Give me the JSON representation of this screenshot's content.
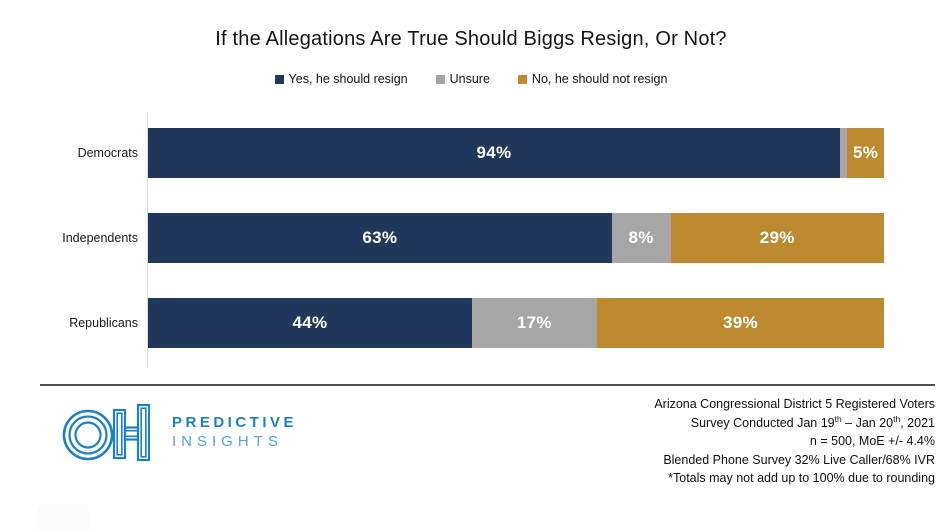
{
  "title": "If the Allegations Are True Should Biggs Resign, Or Not?",
  "legend": [
    {
      "label": "Yes, he should resign",
      "color": "#21375B"
    },
    {
      "label": "Unsure",
      "color": "#A6A6A6"
    },
    {
      "label": "No, he should not resign",
      "color": "#BE8A30"
    }
  ],
  "chart_data": {
    "type": "bar",
    "orientation": "horizontal",
    "stacked": true,
    "title": "If the Allegations Are True Should Biggs Resign, Or Not?",
    "categories": [
      "Democrats",
      "Independents",
      "Republicans"
    ],
    "series": [
      {
        "name": "Yes, he should resign",
        "color": "#21375B",
        "values": [
          94,
          63,
          44
        ]
      },
      {
        "name": "Unsure",
        "color": "#A6A6A6",
        "values": [
          1,
          8,
          17
        ]
      },
      {
        "name": "No, he should not resign",
        "color": "#BE8A30",
        "values": [
          5,
          29,
          39
        ]
      }
    ],
    "xlim": [
      0,
      100
    ],
    "value_suffix": "%",
    "label_min": 4,
    "label_color": "#FFFFFF",
    "grid": false,
    "legend_position": "top",
    "axis_line_color": "#D9D9D9"
  },
  "footer": {
    "logo": {
      "monogram": "OH",
      "name_line1": "PREDICTIVE",
      "name_line2": "INSIGHTS",
      "blue": "#1E80C4",
      "blue_light": "#5AA2D2"
    },
    "notes_line1": "Arizona Congressional District 5 Registered Voters",
    "notes_line2": {
      "pre": "Survey Conducted Jan 19",
      "sup1": "th",
      "mid": " – Jan 20",
      "sup2": "th",
      "post": ", 2021"
    },
    "notes_line3": "n = 500, MoE +/- 4.4%",
    "notes_line4": "Blended Phone Survey 32% Live Caller/68% IVR",
    "notes_line5": "*Totals may not add up to 100% due to rounding"
  }
}
